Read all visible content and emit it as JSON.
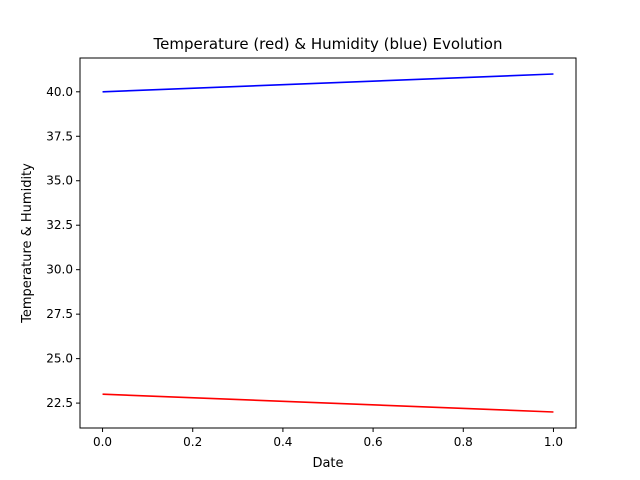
{
  "chart_data": {
    "type": "line",
    "title": "Temperature (red) & Humidity (blue) Evolution",
    "xlabel": "Date",
    "ylabel": "Temperature & Humidity",
    "xlim": [
      -0.05,
      1.05
    ],
    "ylim": [
      21.1,
      41.9
    ],
    "grid": false,
    "x_ticks": [
      0.0,
      0.2,
      0.4,
      0.6,
      0.8,
      1.0
    ],
    "x_tick_labels": [
      "0.0",
      "0.2",
      "0.4",
      "0.6",
      "0.8",
      "1.0"
    ],
    "y_ticks": [
      22.5,
      25.0,
      27.5,
      30.0,
      32.5,
      35.0,
      37.5,
      40.0
    ],
    "y_tick_labels": [
      "22.5",
      "25.0",
      "27.5",
      "30.0",
      "32.5",
      "35.0",
      "37.5",
      "40.0"
    ],
    "series": [
      {
        "color": "#0000ff",
        "x": [
          0.0,
          1.0
        ],
        "values": [
          40.0,
          41.0
        ]
      },
      {
        "color": "#ff0000",
        "x": [
          0.0,
          1.0
        ],
        "values": [
          23.0,
          22.0
        ]
      }
    ]
  }
}
